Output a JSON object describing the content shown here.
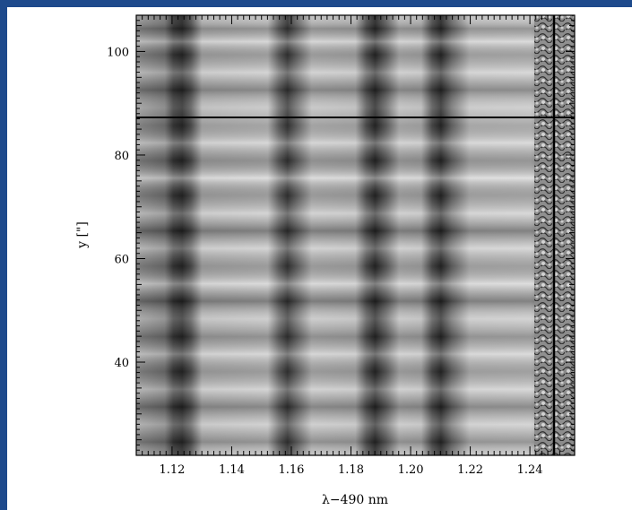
{
  "figure": {
    "xlabel": "λ−490 nm",
    "ylabel": "y [\"]",
    "x_ticks": [
      "1.12",
      "1.14",
      "1.16",
      "1.18",
      "1.20",
      "1.22",
      "1.24"
    ],
    "y_ticks": [
      "100",
      "80",
      "60",
      "40"
    ],
    "xlim": [
      1.108,
      1.255
    ],
    "ylim": [
      22,
      107
    ],
    "x_tick_values": [
      1.12,
      1.14,
      1.16,
      1.18,
      1.2,
      1.22,
      1.24
    ],
    "y_tick_values": [
      100,
      80,
      60,
      40
    ],
    "colors": {
      "frame_background": "#1e4a8c",
      "panel_background": "#ffffff",
      "spectrum_mid_gray": "#b4b4b4"
    }
  }
}
